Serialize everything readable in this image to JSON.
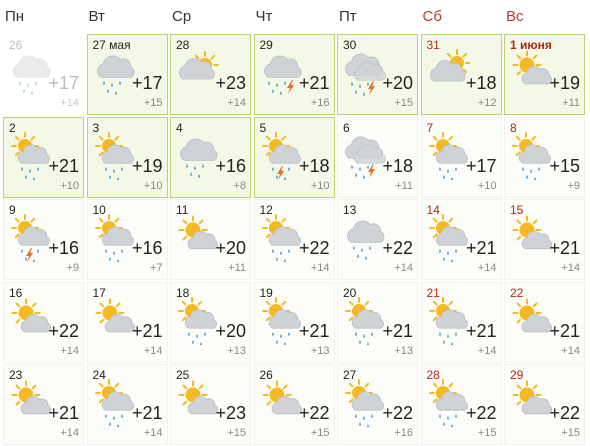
{
  "weekdays": [
    {
      "label": "Пн",
      "weekend": false
    },
    {
      "label": "Вт",
      "weekend": false
    },
    {
      "label": "Ср",
      "weekend": false
    },
    {
      "label": "Чт",
      "weekend": false
    },
    {
      "label": "Пт",
      "weekend": false
    },
    {
      "label": "Сб",
      "weekend": true
    },
    {
      "label": "Вс",
      "weekend": true
    }
  ],
  "colors": {
    "weekend": "#b0281a",
    "highlight_border": "#b9d46c",
    "highlight_bg": "#f3f9e6",
    "sun": "#f5b922",
    "cloud": "#cfd3d8",
    "rain": "#3a8fd9",
    "lightning": "#e8702a"
  },
  "weeks": [
    [
      {
        "day": "26",
        "max": "+17",
        "min": "+14",
        "icon": "cloud-rain-icon",
        "state": "past"
      },
      {
        "day": "27 мая",
        "max": "+17",
        "min": "+15",
        "icon": "cloud-rain-icon",
        "state": "hl"
      },
      {
        "day": "28",
        "max": "+23",
        "min": "+14",
        "icon": "cloud-sun-icon",
        "state": "hl"
      },
      {
        "day": "29",
        "max": "+21",
        "min": "+16",
        "icon": "storm-icon",
        "state": "hl"
      },
      {
        "day": "30",
        "max": "+20",
        "min": "+15",
        "icon": "cloud-storm-icon",
        "state": "hl"
      },
      {
        "day": "31",
        "max": "+18",
        "min": "+12",
        "icon": "partly-sunny-icon",
        "state": "hl",
        "weekend": true
      },
      {
        "day": "1 июня",
        "max": "+19",
        "min": "+11",
        "icon": "sun-cloud-icon",
        "state": "hl",
        "weekend": true,
        "strong": true
      }
    ],
    [
      {
        "day": "2",
        "max": "+21",
        "min": "+10",
        "icon": "sun-cloud-rain-icon",
        "state": "hl"
      },
      {
        "day": "3",
        "max": "+19",
        "min": "+10",
        "icon": "sun-cloud-rain-icon",
        "state": "hl"
      },
      {
        "day": "4",
        "max": "+16",
        "min": "+8",
        "icon": "cloud-rain-icon",
        "state": "hl"
      },
      {
        "day": "5",
        "max": "+18",
        "min": "+10",
        "icon": "sun-storm-icon",
        "state": "hl"
      },
      {
        "day": "6",
        "max": "+18",
        "min": "+11",
        "icon": "cloud-storm-icon",
        "state": "future"
      },
      {
        "day": "7",
        "max": "+17",
        "min": "+10",
        "icon": "sun-cloud-rain-icon",
        "state": "future",
        "weekend": true
      },
      {
        "day": "8",
        "max": "+15",
        "min": "+9",
        "icon": "sun-cloud-rain-icon",
        "state": "future",
        "weekend": true
      }
    ],
    [
      {
        "day": "9",
        "max": "+16",
        "min": "+9",
        "icon": "sun-storm-icon",
        "state": "future"
      },
      {
        "day": "10",
        "max": "+16",
        "min": "+7",
        "icon": "sun-cloud-rain-icon",
        "state": "future"
      },
      {
        "day": "11",
        "max": "+20",
        "min": "+11",
        "icon": "sun-cloud-icon",
        "state": "future"
      },
      {
        "day": "12",
        "max": "+22",
        "min": "+14",
        "icon": "sun-cloud-rain-icon",
        "state": "future"
      },
      {
        "day": "13",
        "max": "+22",
        "min": "+14",
        "icon": "cloud-rain-icon",
        "state": "future"
      },
      {
        "day": "14",
        "max": "+21",
        "min": "+14",
        "icon": "sun-cloud-rain-icon",
        "state": "future",
        "weekend": true
      },
      {
        "day": "15",
        "max": "+21",
        "min": "+14",
        "icon": "sun-cloud-icon",
        "state": "future",
        "weekend": true
      }
    ],
    [
      {
        "day": "16",
        "max": "+22",
        "min": "+14",
        "icon": "sun-cloud-icon",
        "state": "future"
      },
      {
        "day": "17",
        "max": "+21",
        "min": "+14",
        "icon": "sun-cloud-icon",
        "state": "future"
      },
      {
        "day": "18",
        "max": "+20",
        "min": "+13",
        "icon": "sun-cloud-rain-icon",
        "state": "future"
      },
      {
        "day": "19",
        "max": "+21",
        "min": "+13",
        "icon": "sun-cloud-rain-icon",
        "state": "future"
      },
      {
        "day": "20",
        "max": "+21",
        "min": "+13",
        "icon": "sun-cloud-rain-icon",
        "state": "future"
      },
      {
        "day": "21",
        "max": "+21",
        "min": "+14",
        "icon": "sun-cloud-rain-icon",
        "state": "future",
        "weekend": true
      },
      {
        "day": "22",
        "max": "+21",
        "min": "+14",
        "icon": "sun-cloud-icon",
        "state": "future",
        "weekend": true
      }
    ],
    [
      {
        "day": "23",
        "max": "+21",
        "min": "+14",
        "icon": "sun-cloud-icon",
        "state": "future"
      },
      {
        "day": "24",
        "max": "+21",
        "min": "+14",
        "icon": "sun-cloud-rain-icon",
        "state": "future"
      },
      {
        "day": "25",
        "max": "+23",
        "min": "+15",
        "icon": "sun-cloud-icon",
        "state": "future"
      },
      {
        "day": "26",
        "max": "+22",
        "min": "+15",
        "icon": "sun-cloud-icon",
        "state": "future"
      },
      {
        "day": "27",
        "max": "+22",
        "min": "+16",
        "icon": "sun-cloud-rain-icon",
        "state": "future"
      },
      {
        "day": "28",
        "max": "+22",
        "min": "+15",
        "icon": "sun-cloud-rain-icon",
        "state": "future",
        "weekend": true
      },
      {
        "day": "29",
        "max": "+22",
        "min": "+15",
        "icon": "sun-cloud-icon",
        "state": "future",
        "weekend": true
      }
    ]
  ]
}
